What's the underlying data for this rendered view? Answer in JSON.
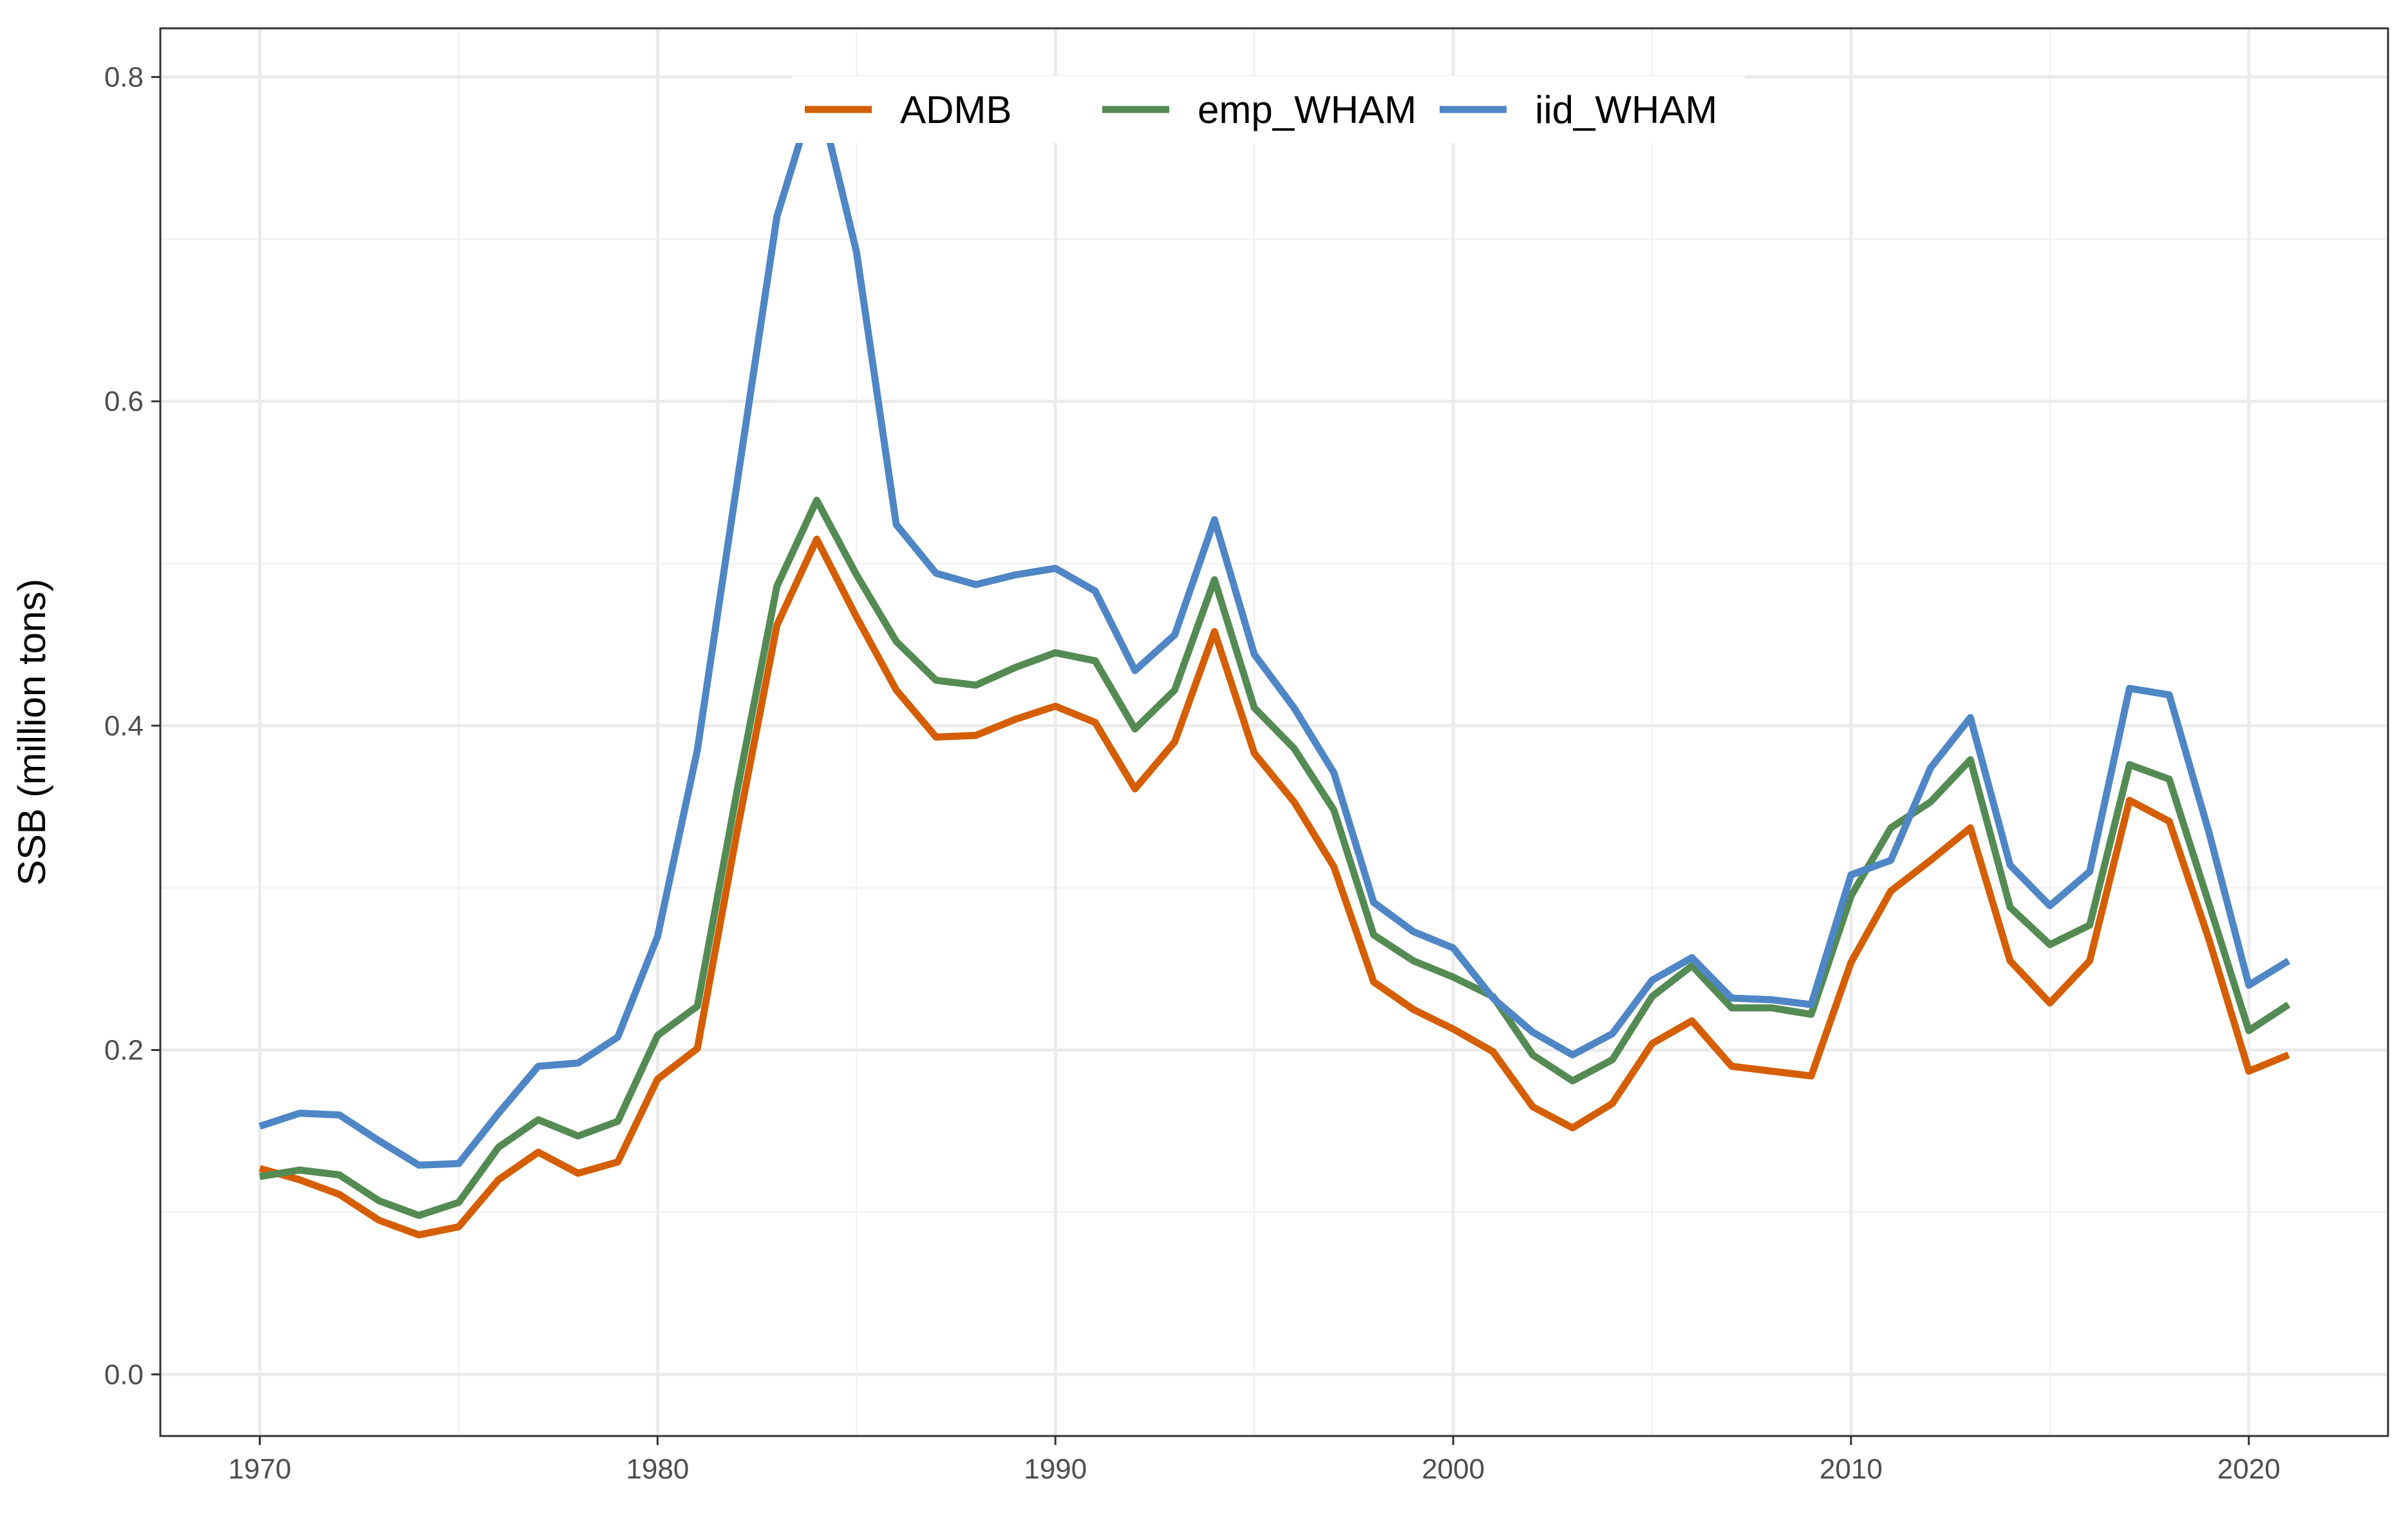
{
  "chart_data": {
    "type": "line",
    "title": "",
    "xlabel": "",
    "ylabel": "SSB (million tons)",
    "xlim": [
      1967.5,
      2023.5
    ],
    "ylim": [
      -0.038,
      0.83
    ],
    "xticks": [
      1970,
      1980,
      1990,
      2000,
      2010,
      2020
    ],
    "yticks": [
      0.0,
      0.2,
      0.4,
      0.6,
      0.8
    ],
    "ytick_labels": [
      "0.0",
      "0.2",
      "0.4",
      "0.6",
      "0.8"
    ],
    "grid": true,
    "legend_position": "top-center",
    "x": [
      1970,
      1971,
      1972,
      1973,
      1974,
      1975,
      1976,
      1977,
      1978,
      1979,
      1980,
      1981,
      1982,
      1983,
      1984,
      1985,
      1986,
      1987,
      1988,
      1989,
      1990,
      1991,
      1992,
      1993,
      1994,
      1995,
      1996,
      1997,
      1998,
      1999,
      2000,
      2001,
      2002,
      2003,
      2004,
      2005,
      2006,
      2007,
      2008,
      2009,
      2010,
      2011,
      2012,
      2013,
      2014,
      2015,
      2016,
      2017,
      2018,
      2019,
      2020,
      2021
    ],
    "series": [
      {
        "name": "ADMB",
        "color": "#D55E00",
        "values": [
          0.127,
          0.12,
          0.111,
          0.095,
          0.086,
          0.091,
          0.12,
          0.137,
          0.124,
          0.131,
          0.182,
          0.201,
          0.335,
          0.462,
          0.515,
          0.467,
          0.422,
          0.393,
          0.394,
          0.404,
          0.412,
          0.402,
          0.361,
          0.39,
          0.458,
          0.383,
          0.353,
          0.313,
          0.242,
          0.225,
          0.213,
          0.199,
          0.165,
          0.152,
          0.167,
          0.204,
          0.218,
          0.19,
          0.187,
          0.184,
          0.254,
          0.298,
          0.317,
          0.337,
          0.255,
          0.229,
          0.255,
          0.354,
          0.341,
          0.268,
          0.187,
          0.197
        ]
      },
      {
        "name": "emp_WHAM",
        "color": "#548B54",
        "values": [
          0.122,
          0.126,
          0.123,
          0.107,
          0.098,
          0.106,
          0.14,
          0.157,
          0.147,
          0.156,
          0.209,
          0.227,
          0.36,
          0.486,
          0.539,
          0.493,
          0.452,
          0.428,
          0.425,
          0.436,
          0.445,
          0.44,
          0.398,
          0.422,
          0.49,
          0.411,
          0.386,
          0.348,
          0.271,
          0.255,
          0.245,
          0.233,
          0.197,
          0.181,
          0.194,
          0.233,
          0.252,
          0.226,
          0.226,
          0.222,
          0.295,
          0.337,
          0.353,
          0.379,
          0.288,
          0.265,
          0.277,
          0.376,
          0.367,
          0.29,
          0.212,
          0.228
        ]
      },
      {
        "name": "iid_WHAM",
        "color": "#4F86C6",
        "values": [
          0.153,
          0.161,
          0.16,
          0.144,
          0.129,
          0.13,
          0.161,
          0.19,
          0.192,
          0.208,
          0.27,
          0.385,
          0.55,
          0.714,
          0.794,
          0.692,
          0.524,
          0.494,
          0.487,
          0.493,
          0.497,
          0.483,
          0.434,
          0.456,
          0.527,
          0.444,
          0.411,
          0.371,
          0.291,
          0.273,
          0.263,
          0.232,
          0.211,
          0.197,
          0.21,
          0.243,
          0.257,
          0.232,
          0.231,
          0.228,
          0.308,
          0.317,
          0.374,
          0.405,
          0.314,
          0.289,
          0.31,
          0.423,
          0.419,
          0.334,
          0.24,
          0.255
        ]
      }
    ]
  }
}
